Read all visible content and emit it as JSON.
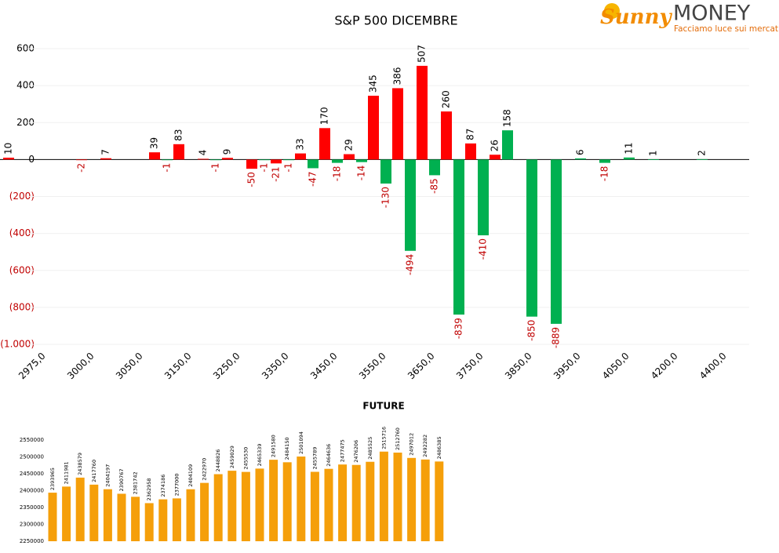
{
  "logo": {
    "brand": "Sunny",
    "name": "MONEY",
    "tagline": "Facciamo luce sui mercati"
  },
  "chart_data": [
    {
      "type": "bar",
      "title": "S&P 500 DICEMBRE",
      "categories": [
        null,
        "2975,0",
        null,
        "3000,0",
        null,
        "3050,0",
        null,
        "3150,0",
        null,
        "3250,0",
        null,
        "3350,0",
        null,
        "3450,0",
        null,
        "3550,0",
        null,
        "3650,0",
        null,
        "3750,0",
        null,
        "3850,0",
        null,
        "3950,0",
        null,
        "4050,0",
        null,
        "4200,0",
        null,
        "4400,0"
      ],
      "series": [
        {
          "color": "#ff0000",
          "values": [
            10,
            null,
            null,
            -2,
            7,
            null,
            39,
            83,
            4,
            9,
            -50,
            -21,
            33,
            170,
            29,
            345,
            386,
            507,
            260,
            87,
            26,
            null,
            null,
            null,
            null,
            null,
            null,
            null,
            null,
            null
          ]
        },
        {
          "color": "#00b050",
          "values": [
            null,
            null,
            null,
            null,
            null,
            null,
            -1,
            null,
            -1,
            null,
            -1,
            -1,
            -47,
            -18,
            -14,
            -130,
            -494,
            -85,
            -839,
            -410,
            158,
            -850,
            -889,
            6,
            -18,
            11,
            1,
            null,
            2,
            null
          ]
        }
      ],
      "ylim": [
        -1000,
        600
      ],
      "yticks": [
        600,
        400,
        200,
        0,
        {
          "value": -200,
          "label": "(200)"
        },
        {
          "value": -400,
          "label": "(400)"
        },
        {
          "value": -600,
          "label": "(600)"
        },
        {
          "value": -800,
          "label": "(800)"
        },
        {
          "value": -1000,
          "label": "(1.000)"
        }
      ],
      "grid": true
    },
    {
      "type": "bar",
      "title": "FUTURE",
      "color": "#f59f0a",
      "values": [
        2393965,
        2411981,
        2438579,
        2417760,
        2404197,
        2390767,
        2381742,
        2362958,
        2374186,
        2377000,
        2404109,
        2422970,
        2448826,
        2459029,
        2455530,
        2465339,
        2491580,
        2484150,
        2501094,
        2455789,
        2464636,
        2477475,
        2476206,
        2485525,
        2515716,
        2512760,
        2497012,
        2492282,
        2486385
      ],
      "ylim": [
        2250000,
        2550000
      ],
      "yticks": [
        2250000,
        2300000,
        2350000,
        2400000,
        2450000,
        2500000,
        2550000
      ]
    }
  ]
}
